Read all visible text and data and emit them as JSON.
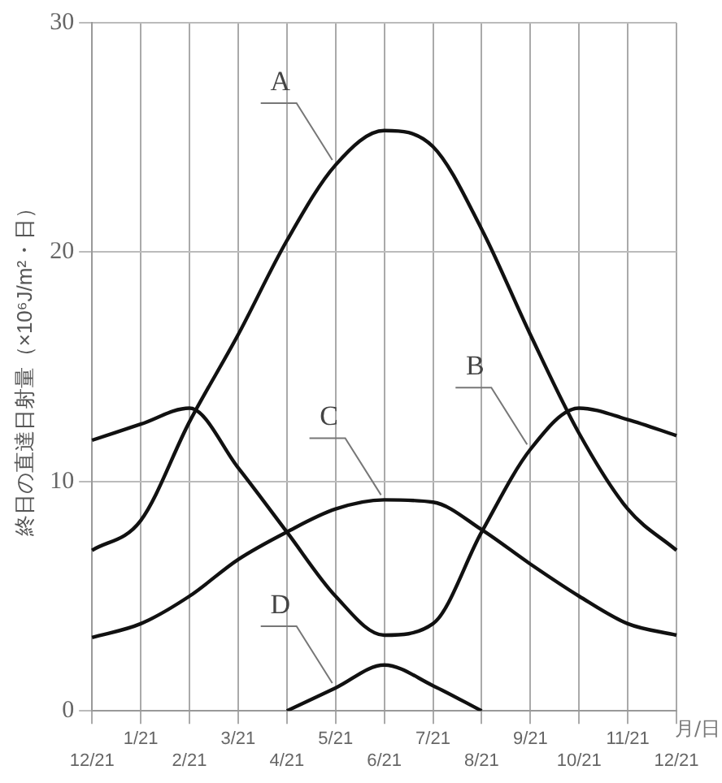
{
  "chart_data": {
    "type": "line",
    "ylabel": "終日の直達日射量（×10⁶J/m²・日）",
    "xlabel": "月/日",
    "categories": [
      "12/21",
      "1/21",
      "2/21",
      "3/21",
      "4/21",
      "5/21",
      "6/21",
      "7/21",
      "8/21",
      "9/21",
      "10/21",
      "11/21",
      "12/21"
    ],
    "series": [
      {
        "color": "#111111",
        "values": [
          7,
          8.3,
          12.6,
          16.4,
          20.5,
          23.8,
          25.3,
          24.6,
          21,
          16.4,
          12.1,
          8.8,
          7
        ]
      },
      {
        "color": "#111111",
        "values": [
          11.8,
          12.5,
          13.2,
          10.6,
          7.8,
          5,
          3.3,
          3.8,
          7.8,
          11.4,
          13.2,
          12.7,
          12
        ]
      },
      {
        "color": "#111111",
        "values": [
          3.2,
          3.8,
          5,
          6.6,
          7.8,
          8.8,
          9.2,
          9.1,
          7.9,
          6.4,
          5,
          3.8,
          3.3
        ]
      },
      {
        "color": "#111111",
        "values": [
          null,
          null,
          null,
          null,
          0,
          1,
          2,
          1.1,
          0,
          null,
          null,
          null,
          null
        ]
      }
    ],
    "ylim": [
      0,
      30
    ],
    "yticks": [
      0,
      10,
      20,
      30
    ],
    "grid": true,
    "legend": false,
    "marker": "none",
    "line_style": "solid",
    "annotations": [
      {
        "text": "A",
        "x": "5/21",
        "y": 23.8
      },
      {
        "text": "B",
        "x": "9/21",
        "y": 11.4
      },
      {
        "text": "C",
        "x": "6/21",
        "y": 9.2
      },
      {
        "text": "D",
        "x": "5/21",
        "y": 1
      }
    ]
  }
}
